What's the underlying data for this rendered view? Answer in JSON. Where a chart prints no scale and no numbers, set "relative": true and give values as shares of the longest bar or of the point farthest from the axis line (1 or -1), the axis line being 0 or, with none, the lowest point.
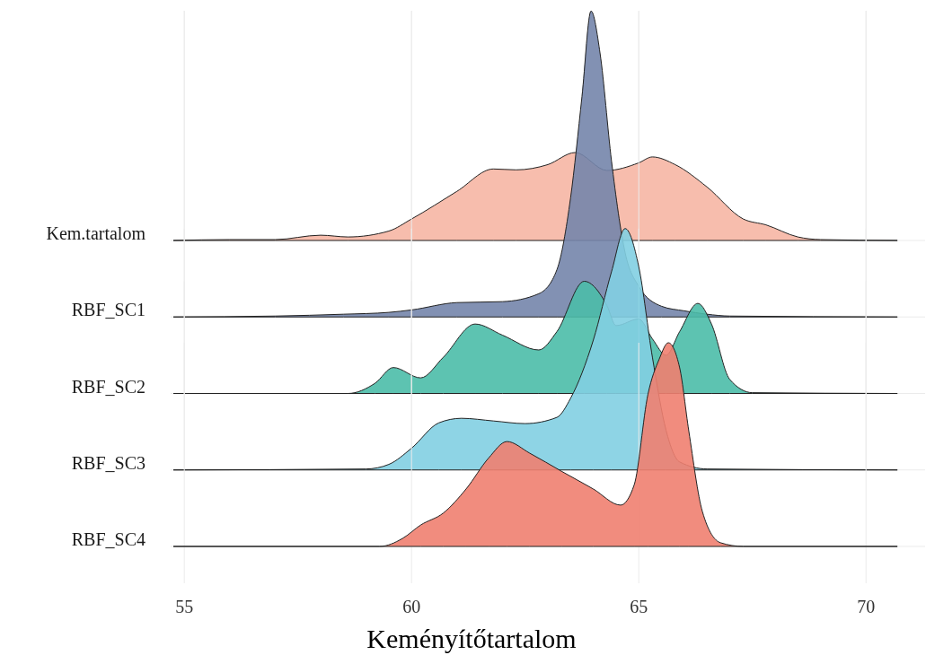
{
  "chart_data": [
    {
      "type": "area",
      "relative": true,
      "xlim": [
        54.7,
        71.3
      ],
      "xticks": [
        55,
        60,
        65,
        70
      ],
      "tick_labels": false,
      "grid": true,
      "series": [
        {
          "name": "Kem.tartalom",
          "color": "#f6b6a4",
          "x": [
            54.76,
            56,
            57,
            58,
            58.6,
            59.5,
            60,
            61,
            61.8,
            62.3,
            63,
            63.6,
            64.3,
            65,
            65.3,
            65.8,
            66.5,
            67.3,
            67.8,
            68.5,
            69,
            70.69
          ],
          "values": [
            0,
            0.01,
            0.01,
            0.06,
            0.04,
            0.107,
            0.244,
            0.559,
            0.813,
            0.803,
            0.863,
            1,
            0.796,
            0.883,
            0.95,
            0.863,
            0.609,
            0.244,
            0.177,
            0.04,
            0.01,
            0
          ]
        }
      ]
    },
    {
      "type": "area",
      "relative": true,
      "xlim": [
        54.7,
        71.3
      ],
      "xticks": [
        55,
        60,
        65,
        70
      ],
      "tick_labels": false,
      "grid": true,
      "series": [
        {
          "name": "RBF_SC1",
          "color": "#7485ab",
          "x": [
            54.76,
            57,
            58.5,
            59.5,
            60,
            61,
            62,
            62.8,
            63.2,
            63.5,
            63.75,
            63.95,
            64.15,
            64.4,
            64.7,
            65,
            65.5,
            66,
            66.5,
            67,
            70.69
          ],
          "values": [
            0,
            0.003,
            0.009,
            0.015,
            0.023,
            0.047,
            0.05,
            0.076,
            0.155,
            0.39,
            0.72,
            1,
            0.86,
            0.51,
            0.21,
            0.1,
            0.035,
            0.02,
            0.009,
            0.003,
            0
          ]
        }
      ]
    },
    {
      "type": "area",
      "relative": true,
      "xlim": [
        54.7,
        71.3
      ],
      "xticks": [
        55,
        60,
        65,
        70
      ],
      "tick_labels": false,
      "grid": true,
      "series": [
        {
          "name": "RBF_SC2",
          "color": "#4bbda9",
          "x": [
            54.76,
            58.6,
            59.2,
            59.6,
            60.2,
            60.7,
            61.4,
            62,
            62.8,
            63.2,
            63.8,
            64.3,
            64.5,
            65,
            65.3,
            65.6,
            65.9,
            66.3,
            66.6,
            67,
            67.5,
            70.69
          ],
          "values": [
            0,
            0,
            0.092,
            0.231,
            0.139,
            0.323,
            0.619,
            0.52,
            0.388,
            0.552,
            1,
            0.783,
            0.605,
            0.664,
            0.487,
            0.341,
            0.552,
            0.803,
            0.619,
            0.126,
            0.007,
            0
          ]
        }
      ]
    },
    {
      "type": "area",
      "relative": true,
      "xlim": [
        54.7,
        71.3
      ],
      "xticks": [
        55,
        60,
        65,
        70
      ],
      "tick_labels": false,
      "grid": true,
      "series": [
        {
          "name": "RBF_SC3",
          "color": "#82cfe2",
          "x": [
            54.76,
            59,
            59.5,
            60,
            60.6,
            61.1,
            61.8,
            62.5,
            63.2,
            63.5,
            64,
            64.4,
            64.7,
            65,
            65.3,
            65.6,
            65.9,
            66.5,
            70.69
          ],
          "values": [
            0,
            0.004,
            0.023,
            0.09,
            0.195,
            0.214,
            0.203,
            0.192,
            0.218,
            0.297,
            0.538,
            0.821,
            1,
            0.842,
            0.467,
            0.165,
            0.033,
            0.004,
            0
          ]
        }
      ]
    },
    {
      "type": "area",
      "relative": true,
      "xlim": [
        54.7,
        71.3
      ],
      "xticks": [
        55,
        60,
        65,
        70
      ],
      "tick_labels": "x",
      "grid": true,
      "xlabel": "Keményítőtartalom",
      "series": [
        {
          "name": "RBF_SC4",
          "color": "#ef8070",
          "x": [
            54.76,
            59.3,
            59.8,
            60.2,
            60.7,
            61.2,
            61.7,
            62.1,
            62.6,
            63.3,
            64,
            64.6,
            64.9,
            65.2,
            65.45,
            65.65,
            65.9,
            66.1,
            66.4,
            66.8,
            67.3,
            70.69
          ],
          "values": [
            0,
            0,
            0.039,
            0.105,
            0.164,
            0.282,
            0.435,
            0.515,
            0.458,
            0.369,
            0.282,
            0.203,
            0.303,
            0.745,
            0.92,
            1,
            0.877,
            0.568,
            0.171,
            0.018,
            0,
            0
          ]
        }
      ]
    }
  ]
}
